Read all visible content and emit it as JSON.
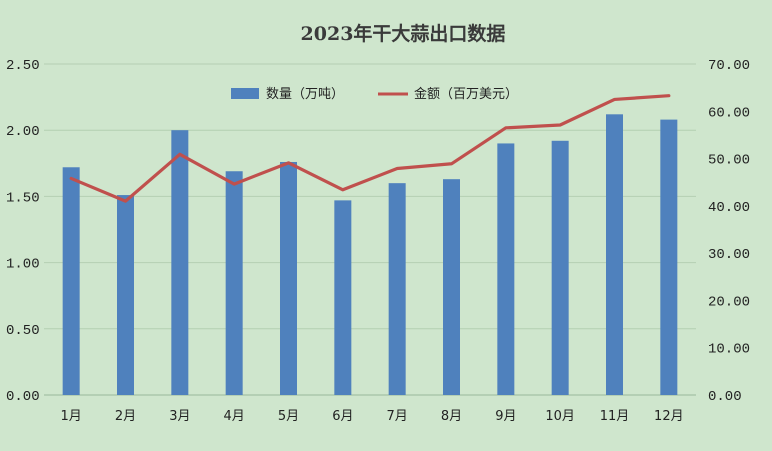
{
  "chart_data": {
    "type": "bar+line",
    "title": "2023年干大蒜出口数据",
    "categories": [
      "1月",
      "2月",
      "3月",
      "4月",
      "5月",
      "6月",
      "7月",
      "8月",
      "9月",
      "10月",
      "11月",
      "12月"
    ],
    "series": [
      {
        "name": "数量（万吨）",
        "type": "bar",
        "axis": "left",
        "color": "#4f81bd",
        "values": [
          1.72,
          1.51,
          2.0,
          1.69,
          1.76,
          1.47,
          1.6,
          1.63,
          1.9,
          1.92,
          2.12,
          2.08
        ]
      },
      {
        "name": "金额（百万美元）",
        "type": "line",
        "axis": "right",
        "color": "#c0504d",
        "values": [
          45.8,
          41.0,
          50.9,
          44.6,
          49.1,
          43.4,
          47.9,
          48.9,
          56.5,
          57.1,
          62.5,
          63.3
        ]
      }
    ],
    "y_left": {
      "min": 0,
      "max": 2.5,
      "ticks": [
        "0.00",
        "0.50",
        "1.00",
        "1.50",
        "2.00",
        "2.50"
      ]
    },
    "y_right": {
      "min": 0,
      "max": 70,
      "ticks": [
        "0.00",
        "10.00",
        "20.00",
        "30.00",
        "40.00",
        "50.00",
        "60.00",
        "70.00"
      ]
    },
    "legend_position": "top-center",
    "grid": "horizontal"
  }
}
